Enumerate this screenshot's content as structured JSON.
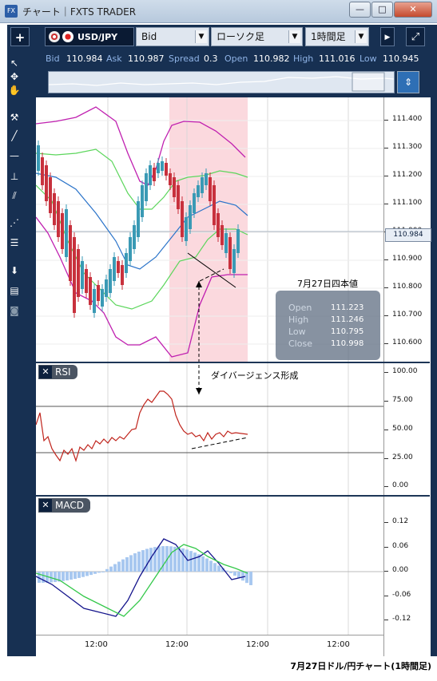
{
  "window": {
    "title": "チャート｜FXTS TRADER",
    "logo_text": "FX",
    "btn_min": "—",
    "btn_max": "□",
    "btn_close": "✕"
  },
  "toolbar": {
    "add_label": "+",
    "pair": "USD/JPY",
    "price_type": "Bid",
    "chart_type": "ローソク足",
    "timeframe": "1時間足",
    "caret": "▼",
    "expand_icon": "▶",
    "popout_icon": "⤢"
  },
  "quote": {
    "bid_label": "Bid",
    "bid": "110.984",
    "ask_label": "Ask",
    "ask": "110.987",
    "spread_label": "Spread",
    "spread": "0.3",
    "open_label": "Open",
    "open": "110.982",
    "high_label": "High",
    "high": "111.016",
    "low_label": "Low",
    "low": "110.945"
  },
  "tools": [
    "arrow-icon",
    "crosshair-icon",
    "hand-icon",
    "line-tool-icon",
    "trendline-icon",
    "hline-icon",
    "vline-icon",
    "channel-icon",
    "fan-icon",
    "fib-icon",
    "download-icon",
    "list-icon",
    "camera-icon"
  ],
  "price_axis": [
    "111.400",
    "111.300",
    "111.200",
    "111.100",
    "111.000",
    "110.900",
    "110.800",
    "110.700",
    "110.600"
  ],
  "current_price_tag": "110.984",
  "rsi": {
    "label": "RSI",
    "close_icon": "✕",
    "ticks": [
      "100.00",
      "75.00",
      "50.00",
      "25.00",
      "0.00"
    ]
  },
  "macd": {
    "label": "MACD",
    "close_icon": "✕",
    "ticks": [
      "0.12",
      "0.06",
      "0.00",
      "-0.06",
      "-0.12"
    ]
  },
  "xaxis": [
    "12:00",
    "12:00",
    "12:00",
    "12:00"
  ],
  "annotation_date": "7月27日四本値",
  "annotation_divergence": "ダイバージェンス形成",
  "ohlc": {
    "open_label": "Open",
    "open": "111.223",
    "high_label": "High",
    "high": "111.246",
    "low_label": "Low",
    "low": "110.795",
    "close_label": "Close",
    "close": "110.998"
  },
  "caption": "7月27日ドル/円チャート(1時間足)",
  "colors": {
    "frame": "#173052",
    "up": "#3a9ab5",
    "down": "#c8313d",
    "band_outer": "#c020b0",
    "band_inner": "#5cd65c",
    "ma": "#2a73c9",
    "highlight": "#fbd9de",
    "rsi": "#c0241c",
    "macd_hist": "#a8c8f0"
  }
}
